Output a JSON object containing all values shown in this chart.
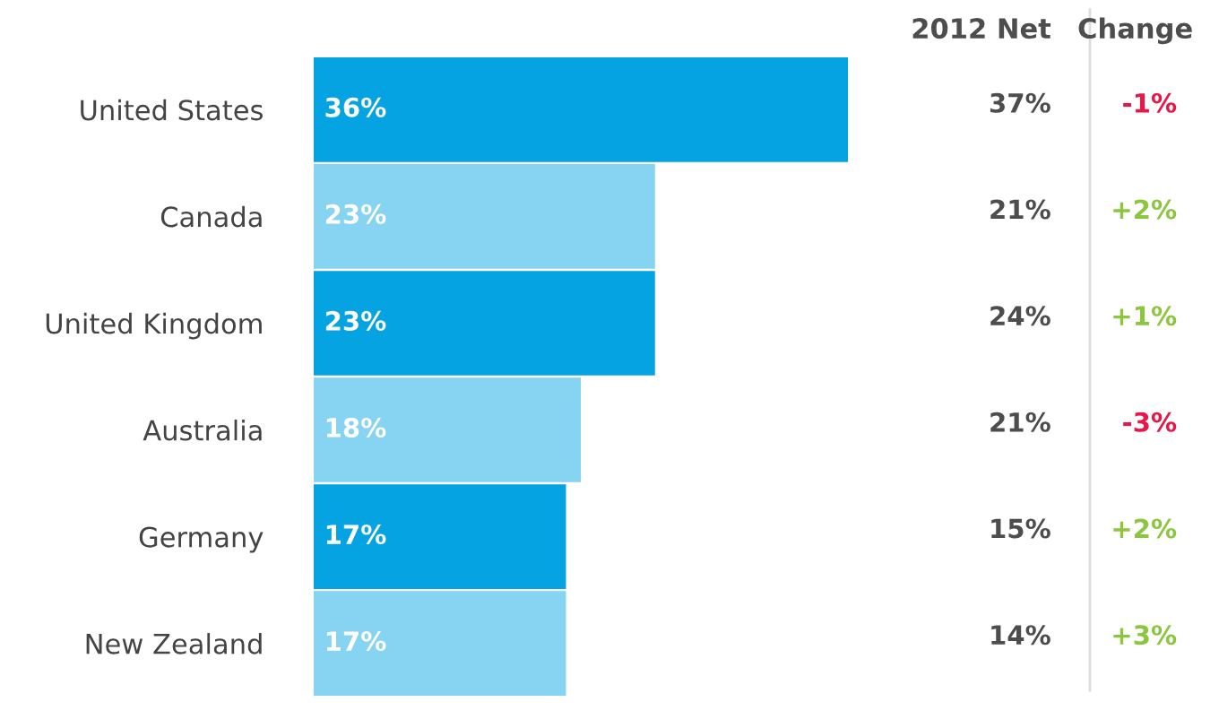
{
  "chart_data": [
    {
      "type": "bar",
      "orientation": "horizontal",
      "categories": [
        "United States",
        "Canada",
        "United Kingdom",
        "Australia",
        "Germany",
        "New Zealand"
      ],
      "values": [
        36,
        23,
        23,
        18,
        17,
        17
      ],
      "colors": [
        "#05a3e2",
        "#86d3f2",
        "#05a3e2",
        "#86d3f2",
        "#05a3e2",
        "#86d3f2"
      ],
      "value_labels": [
        "36%",
        "23%",
        "23%",
        "18%",
        "17%",
        "17%"
      ]
    },
    {
      "type": "other",
      "annotations": [
        "2012 Net",
        "Change",
        "37%",
        "-1%",
        "21%",
        "+2%",
        "24%",
        "+1%",
        "21%",
        "-3%",
        "15%",
        "+2%",
        "14%",
        "+3%"
      ],
      "colors": [
        "#4d4d4d",
        "#4d4d4d",
        "#4d4d4d",
        "#e8174a",
        "#4d4d4d",
        "#8cc63f",
        "#4d4d4d",
        "#8cc63f",
        "#4d4d4d",
        "#e8174a",
        "#4d4d4d",
        "#8cc63f",
        "#4d4d4d",
        "#8cc63f"
      ]
    }
  ]
}
